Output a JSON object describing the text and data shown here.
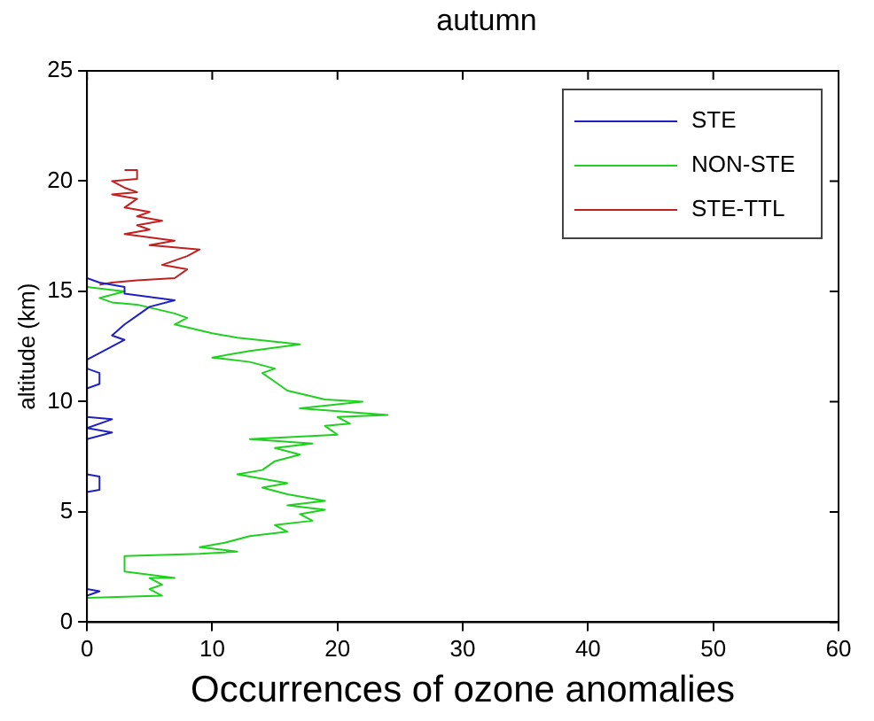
{
  "chart_data": {
    "type": "line",
    "title": "autumn",
    "xlabel": "Occurrences of ozone anomalies",
    "ylabel": "altitude (km)",
    "xlim": [
      0,
      60
    ],
    "xticks": [
      0,
      10,
      20,
      30,
      40,
      50,
      60
    ],
    "ylim": [
      0,
      25
    ],
    "yticks": [
      0,
      5,
      10,
      15,
      20,
      25
    ],
    "grid": false,
    "legend": "top right",
    "marker": "none",
    "line_style": "solid",
    "series": [
      {
        "name": "STE",
        "color": "#2020c0",
        "x": [
          0,
          1,
          0,
          0,
          1,
          1,
          0,
          0,
          2,
          0,
          2,
          0,
          0,
          1,
          1,
          0,
          0,
          1,
          2,
          3,
          2,
          3,
          4,
          5,
          7,
          3,
          3,
          1,
          0
        ],
        "values": [
          1.2,
          1.4,
          1.5,
          5.9,
          6.0,
          6.6,
          6.7,
          8.3,
          8.6,
          8.8,
          9.2,
          9.3,
          10.6,
          10.8,
          11.3,
          11.5,
          11.9,
          12.2,
          12.5,
          12.8,
          13.0,
          13.5,
          13.9,
          14.3,
          14.6,
          14.9,
          15.2,
          15.4,
          15.6
        ]
      },
      {
        "name": "NON-STE",
        "color": "#20d020",
        "x": [
          0,
          6,
          5,
          6,
          5,
          7,
          3,
          3,
          9,
          12,
          9,
          11,
          13,
          16,
          15,
          18,
          17,
          19,
          16,
          19,
          16,
          14,
          16,
          12,
          14,
          15,
          17,
          15,
          18,
          13,
          20,
          19,
          21,
          20,
          24,
          17,
          22,
          19,
          16,
          15,
          14,
          15,
          13,
          10,
          13,
          17,
          12,
          10,
          7,
          8,
          7,
          4,
          2,
          1,
          3,
          0
        ],
        "values": [
          1.1,
          1.2,
          1.5,
          1.7,
          2.0,
          2.0,
          2.3,
          3.0,
          3.1,
          3.2,
          3.4,
          3.6,
          3.9,
          4.1,
          4.4,
          4.6,
          4.9,
          5.1,
          5.3,
          5.5,
          5.8,
          6.1,
          6.3,
          6.7,
          6.9,
          7.3,
          7.6,
          7.9,
          8.1,
          8.3,
          8.5,
          8.9,
          9.0,
          9.3,
          9.4,
          9.7,
          10.0,
          10.1,
          10.5,
          10.9,
          11.3,
          11.5,
          11.8,
          12.0,
          12.3,
          12.6,
          12.9,
          13.1,
          13.5,
          13.8,
          14.0,
          14.4,
          14.5,
          14.7,
          15.0,
          15.2
        ]
      },
      {
        "name": "STE-TTL",
        "color": "#c02020",
        "x": [
          1,
          2,
          4,
          7,
          8,
          6,
          8,
          9,
          5,
          7,
          3,
          5,
          4,
          6,
          4,
          5,
          3,
          4,
          2,
          4,
          3,
          2,
          4,
          4,
          3
        ],
        "values": [
          15.3,
          15.4,
          15.5,
          15.6,
          16.0,
          16.2,
          16.6,
          16.9,
          17.1,
          17.3,
          17.6,
          17.8,
          18.0,
          18.2,
          18.4,
          18.6,
          18.8,
          19.2,
          19.4,
          19.5,
          19.7,
          20.0,
          20.1,
          20.5,
          20.5
        ]
      }
    ]
  }
}
